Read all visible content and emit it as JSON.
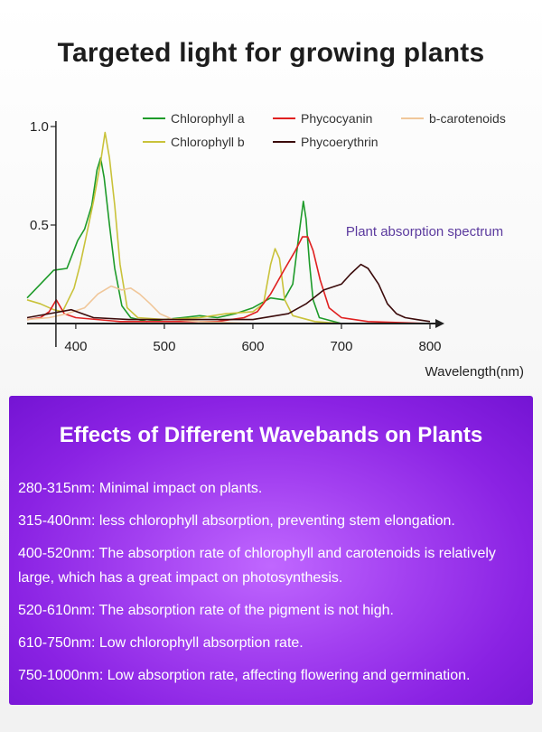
{
  "header": {
    "title": "Targeted light for growing plants"
  },
  "chart_data": {
    "type": "line",
    "xlabel": "Wavelength(nm)",
    "ylabel": "",
    "annotation": "Plant absorption spectrum",
    "xlim": [
      345,
      800
    ],
    "ylim": [
      0,
      1.0
    ],
    "x_ticks": [
      400,
      500,
      600,
      700,
      800
    ],
    "y_ticks": [
      0.5,
      1.0
    ],
    "y_tick_labels": [
      "0.5",
      "1.0"
    ],
    "legend_position": "top-right",
    "series": [
      {
        "name": "Chlorophyll a",
        "color": "#1e9b2a",
        "points": [
          [
            345,
            0.13
          ],
          [
            360,
            0.2
          ],
          [
            375,
            0.27
          ],
          [
            390,
            0.28
          ],
          [
            402,
            0.42
          ],
          [
            410,
            0.48
          ],
          [
            418,
            0.6
          ],
          [
            424,
            0.78
          ],
          [
            428,
            0.84
          ],
          [
            432,
            0.74
          ],
          [
            438,
            0.5
          ],
          [
            444,
            0.28
          ],
          [
            452,
            0.09
          ],
          [
            462,
            0.03
          ],
          [
            480,
            0.01
          ],
          [
            500,
            0.02
          ],
          [
            520,
            0.03
          ],
          [
            540,
            0.04
          ],
          [
            560,
            0.03
          ],
          [
            580,
            0.05
          ],
          [
            600,
            0.08
          ],
          [
            620,
            0.13
          ],
          [
            635,
            0.12
          ],
          [
            645,
            0.2
          ],
          [
            652,
            0.45
          ],
          [
            657,
            0.62
          ],
          [
            660,
            0.53
          ],
          [
            664,
            0.3
          ],
          [
            668,
            0.12
          ],
          [
            675,
            0.03
          ],
          [
            700,
            0.0
          ],
          [
            800,
            0.0
          ]
        ]
      },
      {
        "name": "Chlorophyll b",
        "color": "#c9c23a",
        "points": [
          [
            345,
            0.12
          ],
          [
            360,
            0.1
          ],
          [
            375,
            0.07
          ],
          [
            385,
            0.06
          ],
          [
            398,
            0.18
          ],
          [
            405,
            0.3
          ],
          [
            413,
            0.47
          ],
          [
            420,
            0.62
          ],
          [
            428,
            0.82
          ],
          [
            433,
            0.97
          ],
          [
            438,
            0.84
          ],
          [
            444,
            0.6
          ],
          [
            450,
            0.3
          ],
          [
            458,
            0.08
          ],
          [
            470,
            0.03
          ],
          [
            500,
            0.02
          ],
          [
            540,
            0.03
          ],
          [
            570,
            0.05
          ],
          [
            600,
            0.06
          ],
          [
            612,
            0.1
          ],
          [
            620,
            0.3
          ],
          [
            625,
            0.38
          ],
          [
            630,
            0.33
          ],
          [
            636,
            0.12
          ],
          [
            645,
            0.04
          ],
          [
            670,
            0.01
          ],
          [
            700,
            0.0
          ],
          [
            800,
            0.0
          ]
        ]
      },
      {
        "name": "Phycocyanin",
        "color": "#e02020",
        "points": [
          [
            345,
            0.02
          ],
          [
            360,
            0.03
          ],
          [
            370,
            0.06
          ],
          [
            378,
            0.12
          ],
          [
            387,
            0.05
          ],
          [
            400,
            0.03
          ],
          [
            450,
            0.01
          ],
          [
            500,
            0.01
          ],
          [
            560,
            0.01
          ],
          [
            590,
            0.03
          ],
          [
            605,
            0.06
          ],
          [
            620,
            0.15
          ],
          [
            635,
            0.27
          ],
          [
            648,
            0.37
          ],
          [
            656,
            0.44
          ],
          [
            662,
            0.44
          ],
          [
            668,
            0.37
          ],
          [
            676,
            0.22
          ],
          [
            686,
            0.08
          ],
          [
            700,
            0.03
          ],
          [
            730,
            0.01
          ],
          [
            800,
            0.0
          ]
        ]
      },
      {
        "name": "b-carotenoids",
        "color": "#f0c79a",
        "points": [
          [
            345,
            0.02
          ],
          [
            370,
            0.03
          ],
          [
            390,
            0.05
          ],
          [
            410,
            0.08
          ],
          [
            425,
            0.15
          ],
          [
            440,
            0.19
          ],
          [
            452,
            0.17
          ],
          [
            462,
            0.18
          ],
          [
            472,
            0.15
          ],
          [
            484,
            0.1
          ],
          [
            495,
            0.05
          ],
          [
            510,
            0.02
          ],
          [
            540,
            0.01
          ],
          [
            600,
            0.0
          ],
          [
            800,
            0.0
          ]
        ]
      },
      {
        "name": "Phycoerythrin",
        "color": "#3b0b0b",
        "points": [
          [
            345,
            0.03
          ],
          [
            370,
            0.05
          ],
          [
            395,
            0.07
          ],
          [
            420,
            0.03
          ],
          [
            460,
            0.02
          ],
          [
            500,
            0.02
          ],
          [
            560,
            0.02
          ],
          [
            600,
            0.02
          ],
          [
            640,
            0.05
          ],
          [
            660,
            0.1
          ],
          [
            680,
            0.17
          ],
          [
            700,
            0.2
          ],
          [
            710,
            0.25
          ],
          [
            722,
            0.3
          ],
          [
            730,
            0.28
          ],
          [
            742,
            0.2
          ],
          [
            752,
            0.1
          ],
          [
            762,
            0.05
          ],
          [
            772,
            0.03
          ],
          [
            785,
            0.02
          ],
          [
            800,
            0.01
          ]
        ]
      }
    ]
  },
  "effects": {
    "title": "Effects of Different Wavebands on Plants",
    "items": [
      "280-315nm: Minimal impact on plants.",
      "315-400nm: less chlorophyll absorption, preventing stem elongation.",
      "400-520nm: The absorption rate of chlorophyll and carotenoids is relatively large, which has a great impact on photosynthesis.",
      "520-610nm: The absorption rate of the pigment is not high.",
      "610-750nm: Low chlorophyll absorption rate.",
      "750-1000nm: Low absorption rate, affecting flowering and germination."
    ]
  }
}
